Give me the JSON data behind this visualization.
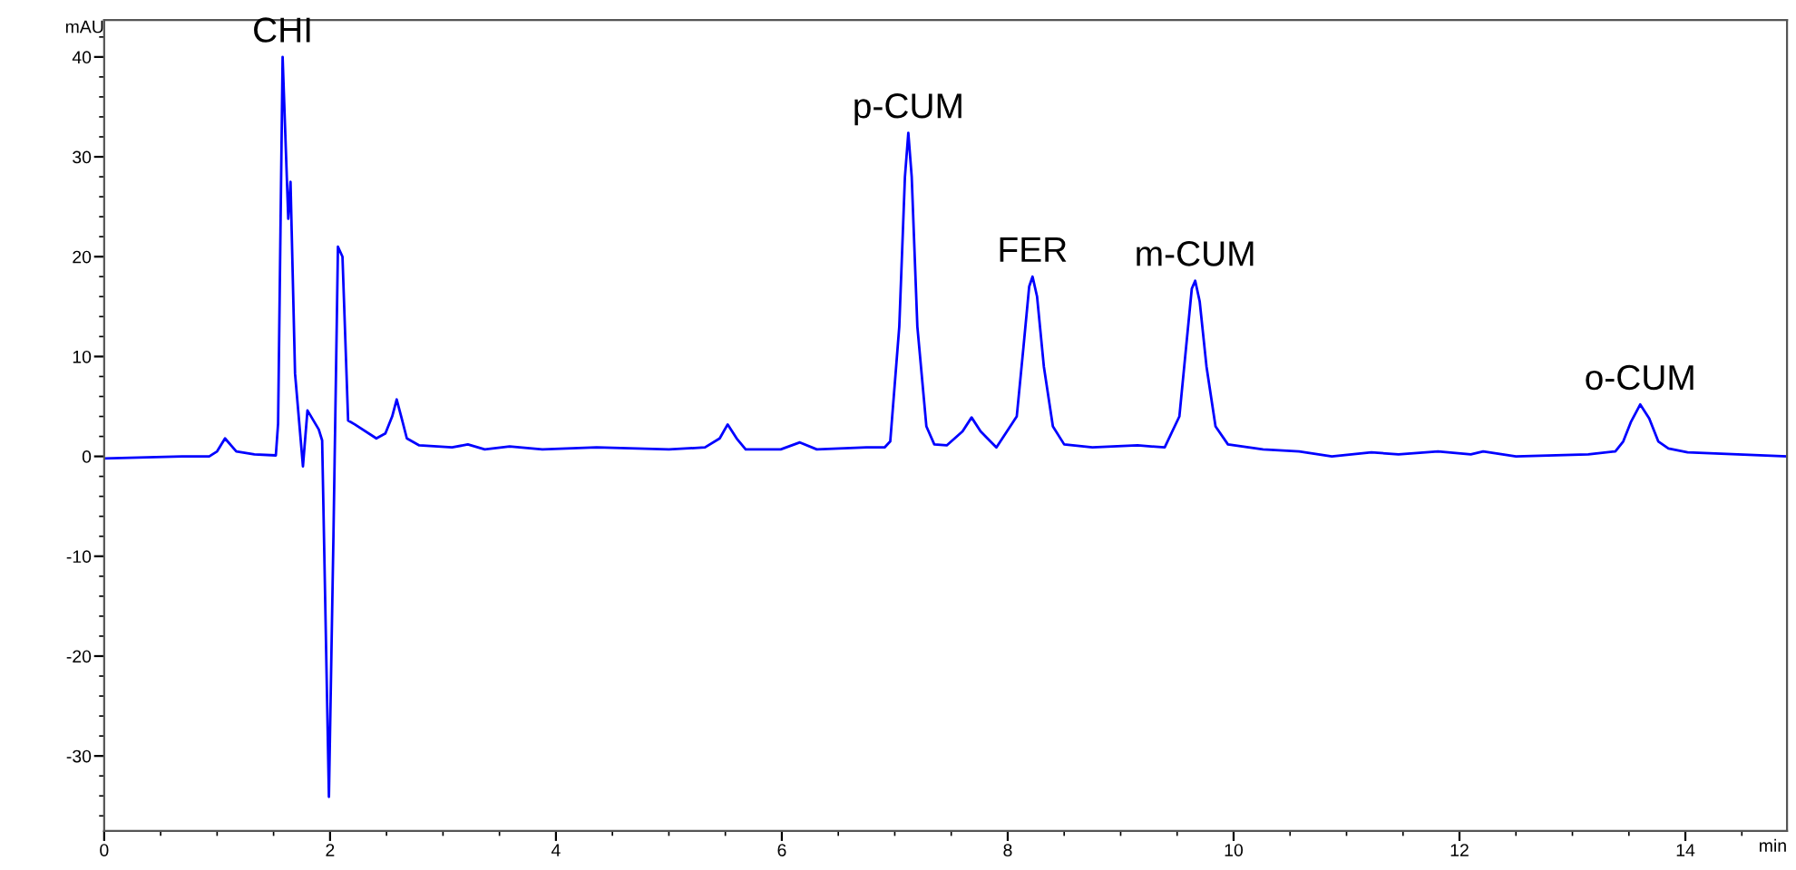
{
  "chart_data": {
    "type": "line",
    "ylabel": "mAU",
    "xlabel": "min",
    "xlim": [
      0,
      14.9
    ],
    "xticks": [
      0,
      2,
      4,
      6,
      8,
      10,
      12,
      14
    ],
    "ylim": [
      -37.5,
      43.7
    ],
    "yticks": [
      -30,
      -20,
      -10,
      0,
      10,
      20,
      30,
      40
    ],
    "grid": false,
    "marker": "none",
    "line_style": "solid",
    "series": [
      {
        "color": "#0000ff",
        "x": [
          0,
          0.69,
          0.93,
          1.0,
          1.07,
          1.17,
          1.33,
          1.52,
          1.54,
          1.58,
          1.63,
          1.65,
          1.69,
          1.76,
          1.8,
          1.9,
          1.93,
          1.99,
          2.03,
          2.07,
          2.11,
          2.16,
          2.22,
          2.41,
          2.49,
          2.55,
          2.59,
          2.63,
          2.68,
          2.79,
          3.08,
          3.22,
          3.37,
          3.59,
          3.88,
          4.36,
          5.0,
          5.32,
          5.45,
          5.52,
          5.6,
          5.68,
          5.99,
          6.16,
          6.31,
          6.75,
          6.91,
          6.96,
          7.04,
          7.09,
          7.12,
          7.15,
          7.2,
          7.28,
          7.35,
          7.46,
          7.6,
          7.68,
          7.76,
          7.9,
          8.08,
          8.14,
          8.19,
          8.22,
          8.26,
          8.32,
          8.4,
          8.5,
          8.75,
          9.15,
          9.39,
          9.52,
          9.58,
          9.63,
          9.66,
          9.7,
          9.76,
          9.84,
          9.95,
          10.26,
          10.58,
          10.87,
          11.22,
          11.46,
          11.81,
          12.1,
          12.21,
          12.5,
          13.14,
          13.38,
          13.45,
          13.52,
          13.6,
          13.68,
          13.76,
          13.85,
          14.02,
          14.9
        ],
        "values": [
          -0.2,
          0,
          0,
          0.5,
          1.8,
          0.5,
          0.2,
          0.1,
          3.3,
          40,
          23.8,
          27.5,
          8.3,
          -1,
          4.6,
          2.7,
          1.6,
          -34.1,
          -8,
          21,
          20,
          3.6,
          3.2,
          1.8,
          2.3,
          4.0,
          5.7,
          4.0,
          1.8,
          1.1,
          0.9,
          1.2,
          0.7,
          1.0,
          0.7,
          0.9,
          0.7,
          0.9,
          1.8,
          3.2,
          1.8,
          0.7,
          0.7,
          1.4,
          0.7,
          0.9,
          0.9,
          1.5,
          13,
          28,
          32.4,
          28,
          13,
          3,
          1.2,
          1.1,
          2.5,
          3.9,
          2.5,
          0.9,
          4,
          11,
          17,
          18,
          16,
          9,
          3,
          1.2,
          0.9,
          1.1,
          0.9,
          4,
          11,
          16.8,
          17.6,
          15.5,
          9,
          3,
          1.2,
          0.7,
          0.5,
          0,
          0.4,
          0.2,
          0.5,
          0.2,
          0.5,
          0,
          0.2,
          0.5,
          1.5,
          3.5,
          5.2,
          3.8,
          1.5,
          0.8,
          0.4,
          0
        ]
      }
    ],
    "annotations": [
      {
        "text": "CHI",
        "x": 1.58,
        "y": 40
      },
      {
        "text": "p-CUM",
        "x": 7.12,
        "y": 32.4
      },
      {
        "text": "FER",
        "x": 8.22,
        "y": 18
      },
      {
        "text": "m-CUM",
        "x": 9.66,
        "y": 17.6
      },
      {
        "text": "o-CUM",
        "x": 13.6,
        "y": 5.2
      }
    ]
  }
}
